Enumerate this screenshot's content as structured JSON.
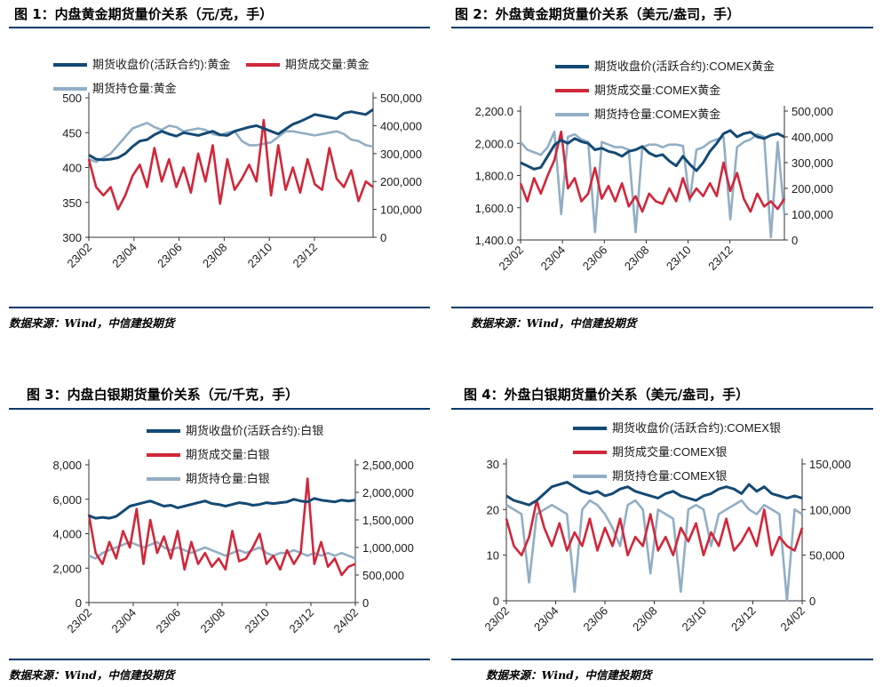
{
  "colors": {
    "price": "#134a73",
    "volume": "#d0273a",
    "oi": "#92aec4",
    "rule": "#0b3a6b"
  },
  "panels": [
    {
      "title": "图 1：内盘黄金期货量价关系（元/克，手）",
      "source": "数据来源：Wind，中信建投期货"
    },
    {
      "title": "图 2：外盘黄金期货量价关系（美元/盎司，手）",
      "source": "数据来源：Wind，中信建投期货"
    },
    {
      "title": "图 3：内盘白银期货量价关系（元/千克，手）",
      "source": "数据来源：Wind，中信建投期货"
    },
    {
      "title": "图 4：外盘白银期货量价关系（美元/盎司，手）",
      "source": "数据来源：Wind，中信建投期货"
    }
  ],
  "chart_data": [
    {
      "type": "line",
      "title": "图 1：内盘黄金期货量价关系（元/克，手）",
      "legend_position": "top",
      "x_ticks": [
        "23/02",
        "23/04",
        "23/06",
        "23/08",
        "23/10",
        "23/12"
      ],
      "y_left": {
        "ticks": [
          "300",
          "350",
          "400",
          "450",
          "500"
        ],
        "lim": [
          300,
          500
        ]
      },
      "y_right": {
        "ticks": [
          "0",
          "100,000",
          "200,000",
          "300,000",
          "400,000",
          "500,000"
        ],
        "lim": [
          0,
          500000
        ]
      },
      "series": [
        {
          "name": "期货收盘价(活跃合约):黄金",
          "axis": "left",
          "color": "#134a73",
          "values": [
            418,
            412,
            411,
            412,
            414,
            420,
            430,
            438,
            440,
            447,
            452,
            448,
            445,
            450,
            448,
            446,
            449,
            452,
            447,
            446,
            452,
            455,
            458,
            460,
            456,
            452,
            448,
            455,
            462,
            466,
            471,
            476,
            474,
            472,
            470,
            478,
            480,
            478,
            476,
            483
          ]
        },
        {
          "name": "期货成交量:黄金",
          "axis": "right",
          "color": "#d0273a",
          "values": [
            280000,
            180000,
            150000,
            180000,
            100000,
            150000,
            220000,
            260000,
            180000,
            320000,
            200000,
            280000,
            180000,
            250000,
            160000,
            300000,
            200000,
            330000,
            120000,
            280000,
            170000,
            210000,
            260000,
            200000,
            420000,
            150000,
            330000,
            170000,
            250000,
            160000,
            280000,
            190000,
            170000,
            320000,
            210000,
            180000,
            240000,
            130000,
            200000,
            180000
          ]
        },
        {
          "name": "期货持仓量:黄金",
          "axis": "right",
          "color": "#92aec4",
          "values": [
            280000,
            270000,
            285000,
            300000,
            330000,
            360000,
            390000,
            400000,
            410000,
            395000,
            385000,
            400000,
            395000,
            380000,
            385000,
            390000,
            385000,
            370000,
            365000,
            375000,
            380000,
            345000,
            330000,
            330000,
            335000,
            340000,
            360000,
            380000,
            380000,
            375000,
            370000,
            365000,
            370000,
            375000,
            380000,
            370000,
            350000,
            345000,
            330000,
            325000
          ]
        }
      ]
    },
    {
      "type": "line",
      "title": "图 2：外盘黄金期货量价关系（美元/盎司，手）",
      "legend_position": "top",
      "x_ticks": [
        "23/02",
        "23/04",
        "23/06",
        "23/08",
        "23/10",
        "23/12"
      ],
      "y_left": {
        "ticks": [
          "1,400.0",
          "1,600.0",
          "1,800.0",
          "2,000.0",
          "2,200.0"
        ],
        "lim": [
          1400,
          2200
        ]
      },
      "y_right": {
        "ticks": [
          "0",
          "100,000",
          "200,000",
          "300,000",
          "400,000",
          "500,000"
        ],
        "lim": [
          0,
          500000
        ]
      },
      "series": [
        {
          "name": "期货收盘价(活跃合约):COMEX黄金",
          "axis": "left",
          "color": "#134a73",
          "values": [
            1880,
            1860,
            1840,
            1850,
            1920,
            1990,
            2020,
            2000,
            2030,
            2010,
            2000,
            1960,
            1970,
            1950,
            1940,
            1920,
            1950,
            1960,
            1980,
            1940,
            1920,
            1930,
            1890,
            1860,
            1920,
            1870,
            1830,
            1880,
            1950,
            2000,
            2060,
            2080,
            2040,
            2060,
            2070,
            2040,
            2030,
            2050,
            2060,
            2040
          ]
        },
        {
          "name": "期货成交量:COMEX黄金",
          "axis": "right",
          "color": "#d0273a",
          "values": [
            220000,
            150000,
            240000,
            180000,
            250000,
            310000,
            420000,
            200000,
            240000,
            150000,
            180000,
            280000,
            160000,
            210000,
            150000,
            220000,
            130000,
            170000,
            110000,
            180000,
            150000,
            140000,
            200000,
            150000,
            240000,
            160000,
            200000,
            170000,
            220000,
            170000,
            300000,
            190000,
            260000,
            160000,
            110000,
            180000,
            130000,
            150000,
            120000,
            160000
          ]
        },
        {
          "name": "期货持仓量:COMEX黄金",
          "axis": "right",
          "color": "#92aec4",
          "values": [
            380000,
            350000,
            340000,
            330000,
            360000,
            420000,
            100000,
            400000,
            410000,
            390000,
            380000,
            30000,
            380000,
            370000,
            360000,
            360000,
            350000,
            30000,
            360000,
            370000,
            370000,
            360000,
            370000,
            370000,
            365000,
            150000,
            350000,
            360000,
            380000,
            390000,
            400000,
            80000,
            360000,
            380000,
            390000,
            410000,
            400000,
            10000,
            380000,
            100000
          ]
        }
      ]
    },
    {
      "type": "line",
      "title": "图 3：内盘白银期货量价关系（元/千克，手）",
      "legend_position": "top",
      "x_ticks": [
        "23/02",
        "23/04",
        "23/06",
        "23/08",
        "23/10",
        "23/12",
        "24/02"
      ],
      "y_left": {
        "ticks": [
          "0",
          "2,000",
          "4,000",
          "6,000",
          "8,000"
        ],
        "lim": [
          0,
          8000
        ]
      },
      "y_right": {
        "ticks": [
          "0",
          "500,000",
          "1,000,000",
          "1,500,000",
          "2,000,000",
          "2,500,000"
        ],
        "lim": [
          0,
          2500000
        ]
      },
      "series": [
        {
          "name": "期货收盘价(活跃合约):白银",
          "axis": "left",
          "color": "#134a73",
          "values": [
            5050,
            4900,
            4950,
            4900,
            5000,
            5300,
            5600,
            5700,
            5800,
            5900,
            5750,
            5600,
            5650,
            5500,
            5600,
            5700,
            5800,
            5900,
            5750,
            5700,
            5600,
            5700,
            5800,
            5750,
            5650,
            5700,
            5800,
            5750,
            5800,
            5850,
            6000,
            5900,
            5850,
            6050,
            5950,
            5900,
            5850,
            5950,
            5900,
            5950
          ]
        },
        {
          "name": "期货成交量:白银",
          "axis": "right",
          "color": "#d0273a",
          "values": [
            1600000,
            900000,
            700000,
            1100000,
            800000,
            1300000,
            1000000,
            1700000,
            700000,
            1500000,
            900000,
            1200000,
            800000,
            1300000,
            600000,
            1100000,
            700000,
            900000,
            650000,
            800000,
            600000,
            1300000,
            750000,
            800000,
            1000000,
            1250000,
            700000,
            850000,
            600000,
            950000,
            700000,
            900000,
            2250000,
            700000,
            1100000,
            650000,
            800000,
            500000,
            650000,
            700000
          ]
        },
        {
          "name": "期货持仓量:白银",
          "axis": "right",
          "color": "#92aec4",
          "values": [
            850000,
            800000,
            900000,
            950000,
            1000000,
            1050000,
            1100000,
            1050000,
            1000000,
            1050000,
            1100000,
            1000000,
            950000,
            1000000,
            950000,
            900000,
            950000,
            1000000,
            950000,
            900000,
            850000,
            900000,
            950000,
            900000,
            950000,
            1000000,
            900000,
            850000,
            900000,
            900000,
            950000,
            900000,
            850000,
            900000,
            850000,
            900000,
            850000,
            900000,
            850000,
            800000
          ]
        }
      ]
    },
    {
      "type": "line",
      "title": "图 4：外盘白银期货量价关系（美元/盎司，手）",
      "legend_position": "top",
      "x_ticks": [
        "23/02",
        "23/04",
        "23/06",
        "23/08",
        "23/10",
        "23/12",
        "24/02"
      ],
      "y_left": {
        "ticks": [
          "0",
          "10",
          "20",
          "30"
        ],
        "lim": [
          0,
          30
        ]
      },
      "y_right": {
        "ticks": [
          "0",
          "50,000",
          "100,000",
          "150,000"
        ],
        "lim": [
          0,
          150000
        ]
      },
      "series": [
        {
          "name": "期货收盘价(活跃合约):COMEX银",
          "axis": "left",
          "color": "#134a73",
          "values": [
            23,
            22,
            21.5,
            21,
            22,
            23.5,
            25,
            25.5,
            26,
            25,
            24,
            23.5,
            24,
            23,
            23.5,
            24.5,
            25,
            24,
            23.5,
            23,
            22.5,
            23.5,
            24,
            23,
            22.5,
            22,
            23,
            23.5,
            24.5,
            25,
            24.5,
            23.5,
            25.5,
            24,
            25,
            23.5,
            23,
            22.5,
            23,
            22.5
          ]
        },
        {
          "name": "期货成交量:COMEX银",
          "axis": "right",
          "color": "#d0273a",
          "values": [
            90000,
            60000,
            50000,
            70000,
            110000,
            80000,
            60000,
            85000,
            55000,
            75000,
            60000,
            90000,
            55000,
            80000,
            60000,
            90000,
            50000,
            70000,
            60000,
            95000,
            55000,
            70000,
            50000,
            80000,
            65000,
            85000,
            50000,
            75000,
            60000,
            90000,
            55000,
            65000,
            80000,
            60000,
            100000,
            50000,
            70000,
            60000,
            55000,
            80000
          ]
        },
        {
          "name": "期货持仓量:COMEX银",
          "axis": "right",
          "color": "#92aec4",
          "values": [
            105000,
            100000,
            95000,
            20000,
            95000,
            100000,
            105000,
            100000,
            95000,
            10000,
            100000,
            110000,
            105000,
            95000,
            80000,
            60000,
            105000,
            110000,
            100000,
            30000,
            100000,
            95000,
            90000,
            10000,
            100000,
            105000,
            100000,
            60000,
            95000,
            100000,
            105000,
            110000,
            100000,
            95000,
            105000,
            100000,
            95000,
            0,
            100000,
            95000
          ]
        }
      ]
    }
  ]
}
